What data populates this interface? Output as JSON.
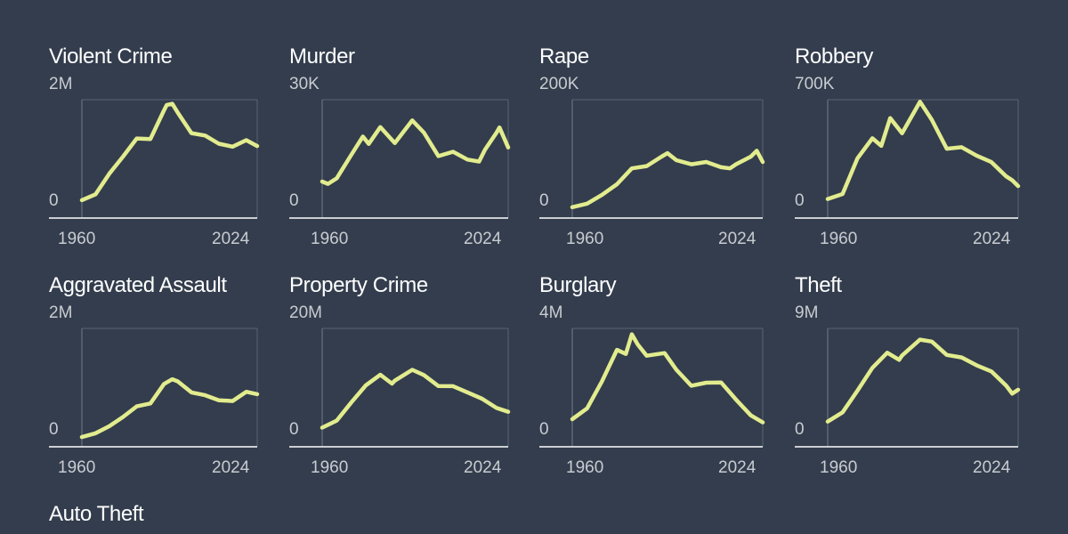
{
  "chart_data": [
    {
      "type": "line",
      "title": "Violent Crime",
      "ymax_label": "2M",
      "ymin_label": "0",
      "ylim": [
        0,
        2000000
      ],
      "x_labels": [
        "1960",
        "2024"
      ],
      "xlim": [
        1960,
        2024
      ],
      "color": "#e2ec8e",
      "x": [
        1960,
        1965,
        1970,
        1975,
        1980,
        1985,
        1990,
        1991,
        1993,
        1995,
        2000,
        2005,
        2010,
        2015,
        2020,
        2024
      ],
      "values": [
        290000,
        390000,
        740000,
        1030000,
        1340000,
        1330000,
        1820000,
        1910000,
        1930000,
        1780000,
        1430000,
        1390000,
        1250000,
        1200000,
        1310000,
        1210000
      ]
    },
    {
      "type": "line",
      "title": "Murder",
      "ymax_label": "30K",
      "ymin_label": "0",
      "ylim": [
        0,
        30000
      ],
      "x_labels": [
        "1960",
        "2024"
      ],
      "xlim": [
        1960,
        2024
      ],
      "color": "#e2ec8e",
      "x": [
        1960,
        1962,
        1965,
        1970,
        1974,
        1976,
        1980,
        1985,
        1991,
        1995,
        2000,
        2005,
        2010,
        2014,
        2016,
        2020,
        2021,
        2024
      ],
      "values": [
        9100,
        8500,
        9900,
        15900,
        20600,
        18700,
        23000,
        18900,
        24700,
        21600,
        15600,
        16700,
        14700,
        14200,
        17200,
        21600,
        22900,
        17800
      ]
    },
    {
      "type": "line",
      "title": "Rape",
      "ymax_label": "200K",
      "ymin_label": "0",
      "ylim": [
        0,
        200000
      ],
      "x_labels": [
        "1960",
        "2024"
      ],
      "xlim": [
        1960,
        2024
      ],
      "color": "#e2ec8e",
      "x": [
        1960,
        1965,
        1970,
        1975,
        1980,
        1985,
        1990,
        1992,
        1995,
        2000,
        2005,
        2010,
        2013,
        2015,
        2020,
        2022,
        2024
      ],
      "values": [
        17000,
        23000,
        38000,
        56000,
        83000,
        87000,
        103000,
        109000,
        97000,
        90000,
        94000,
        85000,
        83000,
        90000,
        103000,
        113000,
        94000
      ]
    },
    {
      "type": "line",
      "title": "Robbery",
      "ymax_label": "700K",
      "ymin_label": "0",
      "ylim": [
        0,
        700000
      ],
      "x_labels": [
        "1960",
        "2024"
      ],
      "xlim": [
        1960,
        2024
      ],
      "color": "#e2ec8e",
      "x": [
        1960,
        1965,
        1970,
        1975,
        1978,
        1981,
        1985,
        1991,
        1995,
        2000,
        2005,
        2010,
        2015,
        2020,
        2022,
        2024
      ],
      "values": [
        108000,
        138000,
        350000,
        470000,
        425000,
        590000,
        500000,
        688000,
        580000,
        408000,
        417000,
        367000,
        328000,
        243000,
        220000,
        185000
      ]
    },
    {
      "type": "line",
      "title": "Aggravated Assault",
      "ymax_label": "2M",
      "ymin_label": "0",
      "ylim": [
        0,
        2000000
      ],
      "x_labels": [
        "1960",
        "2024"
      ],
      "xlim": [
        1960,
        2024
      ],
      "color": "#e2ec8e",
      "x": [
        1960,
        1965,
        1970,
        1975,
        1980,
        1985,
        1990,
        1993,
        1995,
        2000,
        2005,
        2010,
        2015,
        2020,
        2024
      ],
      "values": [
        150000,
        215000,
        335000,
        492000,
        672000,
        723000,
        1054000,
        1135000,
        1099000,
        911000,
        862000,
        778000,
        764000,
        921000,
        880000
      ]
    },
    {
      "type": "line",
      "title": "Property Crime",
      "ymax_label": "20M",
      "ymin_label": "0",
      "ylim": [
        0,
        20000000
      ],
      "x_labels": [
        "1960",
        "2024"
      ],
      "xlim": [
        1960,
        2024
      ],
      "color": "#e2ec8e",
      "x": [
        1960,
        1965,
        1970,
        1975,
        1980,
        1984,
        1985,
        1991,
        1995,
        2000,
        2005,
        2010,
        2015,
        2020,
        2024
      ],
      "values": [
        3100000,
        4300000,
        7400000,
        10300000,
        12100000,
        10600000,
        11100000,
        12960000,
        12060000,
        10180000,
        10170000,
        9110000,
        8030000,
        6450000,
        5800000
      ]
    },
    {
      "type": "line",
      "title": "Burglary",
      "ymax_label": "4M",
      "ymin_label": "0",
      "ylim": [
        0,
        4000000
      ],
      "x_labels": [
        "1960",
        "2024"
      ],
      "xlim": [
        1960,
        2024
      ],
      "color": "#e2ec8e",
      "x": [
        1960,
        1965,
        1970,
        1975,
        1978,
        1980,
        1982,
        1985,
        1991,
        1995,
        2000,
        2005,
        2010,
        2015,
        2020,
        2024
      ],
      "values": [
        910000,
        1280000,
        2200000,
        3270000,
        3130000,
        3800000,
        3450000,
        3070000,
        3160000,
        2590000,
        2050000,
        2150000,
        2160000,
        1580000,
        1040000,
        800000
      ]
    },
    {
      "type": "line",
      "title": "Theft",
      "ymax_label": "9M",
      "ymin_label": "0",
      "ylim": [
        0,
        9000000
      ],
      "x_labels": [
        "1960",
        "2024"
      ],
      "xlim": [
        1960,
        2024
      ],
      "color": "#e2ec8e",
      "x": [
        1960,
        1965,
        1970,
        1975,
        1980,
        1984,
        1985,
        1991,
        1995,
        2000,
        2005,
        2010,
        2015,
        2020,
        2022,
        2024
      ],
      "values": [
        1860000,
        2570000,
        4230000,
        5980000,
        7140000,
        6590000,
        6930000,
        8140000,
        7990000,
        6970000,
        6780000,
        6180000,
        5710000,
        4610000,
        4000000,
        4300000
      ]
    },
    {
      "type": "line",
      "title": "Auto Theft",
      "ymax_label": "",
      "ymin_label": "",
      "ylim": [],
      "x_labels": [],
      "xlim": [],
      "color": "#e2ec8e",
      "x": [],
      "values": []
    }
  ]
}
